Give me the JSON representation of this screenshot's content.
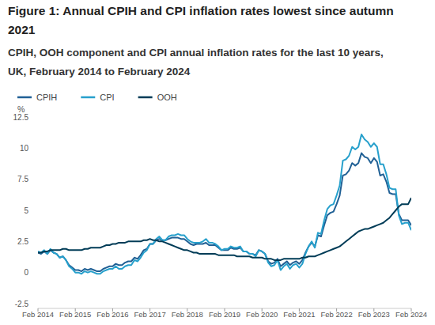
{
  "chart_data": {
    "type": "line",
    "title": "Figure 1: Annual CPIH and CPI inflation rates lowest since autumn 2021",
    "subtitle": "CPIH, OOH component and CPI annual inflation rates for the last 10 years, UK, February 2014 to February 2024",
    "y_label": "%",
    "categories": [
      "Feb 2014",
      null,
      null,
      null,
      null,
      null,
      null,
      null,
      null,
      null,
      null,
      null,
      "Feb 2015",
      null,
      null,
      null,
      null,
      null,
      null,
      null,
      null,
      null,
      null,
      null,
      "Feb 2016",
      null,
      null,
      null,
      null,
      null,
      null,
      null,
      null,
      null,
      null,
      null,
      "Feb 2017",
      null,
      null,
      null,
      null,
      null,
      null,
      null,
      null,
      null,
      null,
      null,
      "Feb 2018",
      null,
      null,
      null,
      null,
      null,
      null,
      null,
      null,
      null,
      null,
      null,
      "Feb 2019",
      null,
      null,
      null,
      null,
      null,
      null,
      null,
      null,
      null,
      null,
      null,
      "Feb 2020",
      null,
      null,
      null,
      null,
      null,
      null,
      null,
      null,
      null,
      null,
      null,
      "Feb 2021",
      null,
      null,
      null,
      null,
      null,
      null,
      null,
      null,
      null,
      null,
      null,
      "Feb 2022",
      null,
      null,
      null,
      null,
      null,
      null,
      null,
      null,
      null,
      null,
      null,
      "Feb 2023",
      null,
      null,
      null,
      null,
      null,
      null,
      null,
      null,
      null,
      null,
      null,
      "Feb 2024"
    ],
    "series": [
      {
        "name": "CPIH",
        "color": "#206095",
        "values": [
          1.6,
          1.5,
          1.7,
          1.5,
          1.8,
          1.6,
          1.5,
          1.2,
          1.3,
          1.0,
          0.6,
          0.4,
          0.2,
          0.2,
          0.1,
          0.3,
          0.2,
          0.3,
          0.2,
          0.1,
          0.1,
          0.3,
          0.4,
          0.5,
          0.5,
          0.7,
          0.6,
          0.6,
          0.8,
          0.9,
          0.9,
          1.2,
          1.1,
          1.4,
          1.8,
          1.9,
          2.3,
          2.3,
          2.6,
          2.7,
          2.6,
          2.6,
          2.7,
          2.8,
          2.8,
          2.8,
          2.7,
          2.7,
          2.5,
          2.3,
          2.2,
          2.3,
          2.3,
          2.3,
          2.4,
          2.2,
          2.2,
          2.2,
          2.0,
          1.8,
          1.8,
          1.8,
          2.0,
          1.9,
          1.9,
          2.0,
          1.7,
          1.7,
          1.5,
          1.5,
          1.4,
          1.8,
          1.7,
          1.5,
          0.9,
          0.7,
          0.8,
          1.1,
          0.5,
          0.7,
          0.9,
          0.6,
          0.8,
          0.9,
          0.7,
          1.0,
          1.6,
          2.1,
          2.4,
          2.1,
          3.0,
          2.9,
          3.8,
          4.6,
          4.8,
          4.9,
          5.5,
          6.2,
          7.8,
          7.9,
          8.2,
          8.8,
          8.6,
          8.8,
          9.6,
          9.3,
          9.2,
          8.8,
          9.2,
          8.9,
          7.8,
          7.9,
          7.3,
          6.4,
          6.3,
          6.3,
          4.7,
          4.2,
          4.2,
          4.2,
          3.8
        ]
      },
      {
        "name": "CPI",
        "color": "#27a0cc",
        "values": [
          1.7,
          1.6,
          1.8,
          1.5,
          1.9,
          1.6,
          1.5,
          1.2,
          1.3,
          1.0,
          0.5,
          0.3,
          0.0,
          0.0,
          -0.1,
          0.1,
          0.0,
          0.1,
          0.0,
          -0.1,
          -0.1,
          0.1,
          0.2,
          0.3,
          0.3,
          0.5,
          0.3,
          0.3,
          0.5,
          0.6,
          0.6,
          1.0,
          0.9,
          1.2,
          1.6,
          1.8,
          2.3,
          2.3,
          2.7,
          2.9,
          2.6,
          2.6,
          2.9,
          3.0,
          3.0,
          3.1,
          3.0,
          3.0,
          2.7,
          2.5,
          2.4,
          2.4,
          2.4,
          2.5,
          2.7,
          2.4,
          2.4,
          2.3,
          2.1,
          1.8,
          1.9,
          1.9,
          2.1,
          2.0,
          2.0,
          2.1,
          1.7,
          1.7,
          1.5,
          1.5,
          1.3,
          1.8,
          1.7,
          1.5,
          0.8,
          0.5,
          0.6,
          1.0,
          0.2,
          0.5,
          0.7,
          0.3,
          0.6,
          0.7,
          0.4,
          0.7,
          1.5,
          2.1,
          2.5,
          2.0,
          3.2,
          3.1,
          4.2,
          5.1,
          5.4,
          5.5,
          6.2,
          7.0,
          9.0,
          9.1,
          9.4,
          10.1,
          9.9,
          10.1,
          11.1,
          10.7,
          10.5,
          10.1,
          10.4,
          10.1,
          8.7,
          8.7,
          7.9,
          6.8,
          6.7,
          6.7,
          4.6,
          3.9,
          4.0,
          4.0,
          3.4
        ]
      },
      {
        "name": "OOH",
        "color": "#003c57",
        "values": [
          1.6,
          1.6,
          1.7,
          1.7,
          1.8,
          1.8,
          1.8,
          1.8,
          1.9,
          1.9,
          1.8,
          1.8,
          1.8,
          1.8,
          1.8,
          1.9,
          1.9,
          2.0,
          2.0,
          2.0,
          2.0,
          2.1,
          2.2,
          2.2,
          2.3,
          2.3,
          2.4,
          2.4,
          2.4,
          2.5,
          2.5,
          2.5,
          2.5,
          2.5,
          2.6,
          2.6,
          2.7,
          2.6,
          2.6,
          2.5,
          2.5,
          2.4,
          2.3,
          2.2,
          2.1,
          2.0,
          1.9,
          1.8,
          1.8,
          1.7,
          1.6,
          1.6,
          1.5,
          1.5,
          1.5,
          1.5,
          1.5,
          1.5,
          1.4,
          1.4,
          1.4,
          1.4,
          1.4,
          1.4,
          1.3,
          1.3,
          1.3,
          1.3,
          1.3,
          1.2,
          1.2,
          1.2,
          1.2,
          1.1,
          1.1,
          1.1,
          1.0,
          1.0,
          1.0,
          1.1,
          1.1,
          1.1,
          1.1,
          1.1,
          1.1,
          1.2,
          1.2,
          1.3,
          1.3,
          1.3,
          1.4,
          1.5,
          1.6,
          1.7,
          1.8,
          1.9,
          2.0,
          2.1,
          2.3,
          2.5,
          2.7,
          2.9,
          3.1,
          3.3,
          3.4,
          3.5,
          3.5,
          3.6,
          3.7,
          3.8,
          3.9,
          4.0,
          4.2,
          4.4,
          4.7,
          5.0,
          5.3,
          5.5,
          5.5,
          5.5,
          6.0
        ]
      }
    ],
    "ylim": [
      -2.5,
      12.5
    ],
    "yticks": [
      -2.5,
      0,
      2.5,
      5,
      7.5,
      10,
      12.5
    ],
    "grid": false,
    "legend": "top-left"
  }
}
